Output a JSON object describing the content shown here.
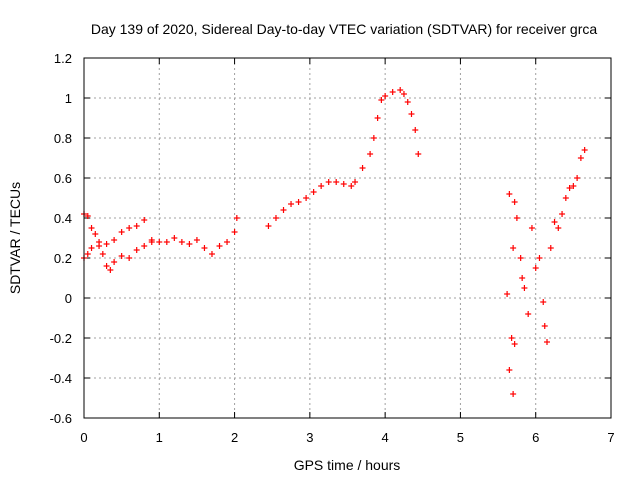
{
  "chart_data": {
    "type": "scatter",
    "title": "Day 139 of 2020, Sidereal Day-to-day VTEC variation (SDTVAR) for receiver grca",
    "xlabel": "GPS time / hours",
    "ylabel": "SDTVAR / TECUs",
    "xlim": [
      0,
      7
    ],
    "ylim": [
      -0.6,
      1.2
    ],
    "xticks": [
      0,
      1,
      2,
      3,
      4,
      5,
      6,
      7
    ],
    "yticks": [
      -0.6,
      -0.4,
      -0.2,
      0,
      0.2,
      0.4,
      0.6,
      0.8,
      1,
      1.2
    ],
    "xtick_labels": [
      "0",
      "1",
      "2",
      "3",
      "4",
      "5",
      "6",
      "7"
    ],
    "ytick_labels": [
      "-0.6",
      "-0.4",
      "-0.2",
      "0",
      "0.2",
      "0.4",
      "0.6",
      "0.8",
      "1",
      "1.2"
    ],
    "grid": true,
    "marker": "+",
    "color": "#ff0000",
    "series": [
      {
        "name": "SDTVAR",
        "trend_points": [
          [
            0.0,
            0.42
          ],
          [
            0.05,
            0.41
          ],
          [
            0.1,
            0.35
          ],
          [
            0.15,
            0.32
          ],
          [
            0.2,
            0.28
          ],
          [
            0.25,
            0.22
          ],
          [
            0.3,
            0.16
          ],
          [
            0.35,
            0.14
          ],
          [
            0.4,
            0.18
          ],
          [
            0.5,
            0.21
          ],
          [
            0.6,
            0.2
          ],
          [
            0.7,
            0.24
          ],
          [
            0.8,
            0.26
          ],
          [
            0.9,
            0.28
          ],
          [
            0.0,
            0.2
          ],
          [
            0.05,
            0.22
          ],
          [
            0.1,
            0.25
          ],
          [
            0.2,
            0.26
          ],
          [
            0.3,
            0.27
          ],
          [
            0.4,
            0.29
          ],
          [
            0.5,
            0.33
          ],
          [
            0.6,
            0.35
          ],
          [
            0.7,
            0.36
          ],
          [
            0.8,
            0.39
          ],
          [
            0.9,
            0.29
          ],
          [
            1.0,
            0.28
          ],
          [
            1.1,
            0.28
          ],
          [
            1.2,
            0.3
          ],
          [
            1.3,
            0.28
          ],
          [
            1.4,
            0.27
          ],
          [
            1.5,
            0.29
          ],
          [
            1.6,
            0.25
          ],
          [
            1.7,
            0.22
          ],
          [
            1.8,
            0.26
          ],
          [
            1.9,
            0.28
          ],
          [
            2.0,
            0.33
          ],
          [
            2.03,
            0.4
          ],
          [
            2.45,
            0.36
          ],
          [
            2.55,
            0.4
          ],
          [
            2.65,
            0.44
          ],
          [
            2.75,
            0.47
          ],
          [
            2.85,
            0.48
          ],
          [
            2.95,
            0.5
          ],
          [
            3.05,
            0.53
          ],
          [
            3.15,
            0.56
          ],
          [
            3.25,
            0.58
          ],
          [
            3.35,
            0.58
          ],
          [
            3.45,
            0.57
          ],
          [
            3.55,
            0.56
          ],
          [
            3.6,
            0.58
          ],
          [
            3.7,
            0.65
          ],
          [
            3.8,
            0.72
          ],
          [
            3.85,
            0.8
          ],
          [
            3.9,
            0.9
          ],
          [
            3.95,
            0.99
          ],
          [
            4.0,
            1.01
          ],
          [
            4.1,
            1.03
          ],
          [
            4.2,
            1.04
          ],
          [
            4.25,
            1.02
          ],
          [
            4.3,
            0.98
          ],
          [
            4.35,
            0.92
          ],
          [
            4.4,
            0.84
          ],
          [
            4.44,
            0.72
          ]
        ],
        "scattered_points": [
          [
            5.65,
            0.52
          ],
          [
            5.72,
            0.48
          ],
          [
            5.75,
            0.4
          ],
          [
            5.7,
            0.25
          ],
          [
            5.8,
            0.2
          ],
          [
            5.85,
            0.05
          ],
          [
            5.9,
            -0.08
          ],
          [
            5.68,
            -0.2
          ],
          [
            5.65,
            -0.36
          ],
          [
            5.7,
            -0.48
          ],
          [
            5.72,
            -0.23
          ],
          [
            5.62,
            0.02
          ],
          [
            5.82,
            0.1
          ],
          [
            5.95,
            0.35
          ],
          [
            6.0,
            0.15
          ],
          [
            6.05,
            0.2
          ],
          [
            6.1,
            -0.02
          ],
          [
            6.12,
            -0.14
          ],
          [
            6.15,
            -0.22
          ],
          [
            6.2,
            0.25
          ],
          [
            6.25,
            0.38
          ],
          [
            6.3,
            0.35
          ],
          [
            6.35,
            0.42
          ],
          [
            6.4,
            0.5
          ],
          [
            6.45,
            0.55
          ],
          [
            6.5,
            0.56
          ],
          [
            6.55,
            0.6
          ],
          [
            6.6,
            0.7
          ],
          [
            6.65,
            0.74
          ]
        ]
      }
    ]
  }
}
